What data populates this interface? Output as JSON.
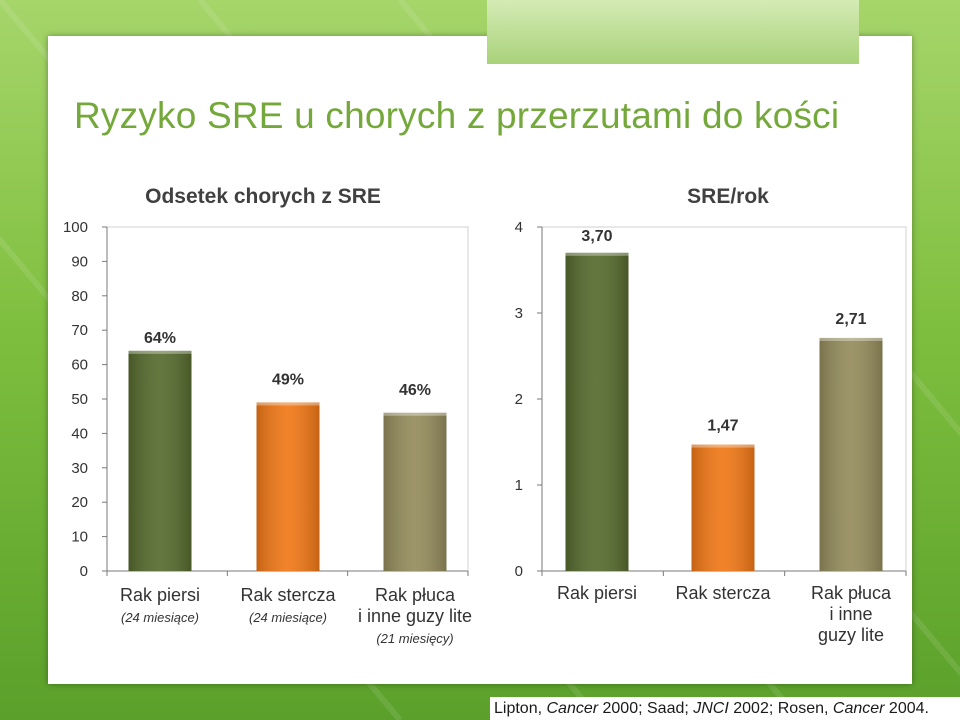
{
  "slide": {
    "title": "Ryzyko SRE u chorych z przerzutami do kości",
    "citation": [
      {
        "text": "Lipton, ",
        "italic": false
      },
      {
        "text": "Cancer",
        "italic": true
      },
      {
        "text": " 2000; Saad; ",
        "italic": false
      },
      {
        "text": "JNCI",
        "italic": true
      },
      {
        "text": " 2002; Rosen, ",
        "italic": false
      },
      {
        "text": "Cancer",
        "italic": true
      },
      {
        "text": " 2004.",
        "italic": false
      }
    ]
  },
  "chart_data": [
    {
      "type": "bar",
      "title": "Odsetek chorych z SRE",
      "xlabel": "",
      "ylabel": "",
      "ylim": [
        0,
        100
      ],
      "yticks": [
        0,
        10,
        20,
        30,
        40,
        50,
        60,
        70,
        80,
        90,
        100
      ],
      "grid": false,
      "categories": [
        {
          "lines": [
            "Rak piersi"
          ],
          "note": "(24 miesiące)"
        },
        {
          "lines": [
            "Rak stercza"
          ],
          "note": "(24 miesiące)"
        },
        {
          "lines": [
            "Rak płuca",
            "i inne guzy lite"
          ],
          "note": "(21 miesięcy)"
        }
      ],
      "values": [
        64,
        49,
        46
      ],
      "data_labels": [
        "64%",
        "49%",
        "46%"
      ],
      "colors": [
        "#566b2e",
        "#f07817",
        "#948c5c"
      ]
    },
    {
      "type": "bar",
      "title": "SRE/rok",
      "xlabel": "",
      "ylabel": "",
      "ylim": [
        0,
        4
      ],
      "yticks": [
        0,
        1,
        2,
        3,
        4
      ],
      "grid": false,
      "categories": [
        {
          "lines": [
            "Rak piersi"
          ],
          "note": ""
        },
        {
          "lines": [
            "Rak stercza"
          ],
          "note": ""
        },
        {
          "lines": [
            "Rak płuca",
            "i inne",
            "guzy lite"
          ],
          "note": ""
        }
      ],
      "values": [
        3.7,
        1.47,
        2.71
      ],
      "data_labels": [
        "3,70",
        "1,47",
        "2,71"
      ],
      "colors": [
        "#566b2e",
        "#f07817",
        "#948c5c"
      ]
    }
  ]
}
